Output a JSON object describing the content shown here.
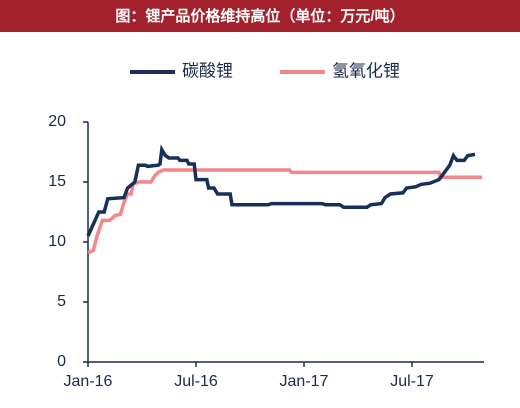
{
  "chart_data": {
    "type": "line",
    "title": "图：锂产品价格维持高位（单位：万元/吨）",
    "xlim": [
      0,
      22
    ],
    "xticks": [
      {
        "value": 0,
        "label": "Jan-16"
      },
      {
        "value": 6,
        "label": "Jul-16"
      },
      {
        "value": 12,
        "label": "Jan-17"
      },
      {
        "value": 18,
        "label": "Jul-17"
      }
    ],
    "ylim": [
      0,
      20
    ],
    "yticks": [
      0,
      5,
      10,
      15,
      20
    ],
    "grid": false,
    "legend": "top",
    "series": [
      {
        "name": "碳酸锂",
        "color": "#17305a",
        "x": [
          0,
          0.3,
          0.6,
          0.9,
          1.1,
          2.0,
          2.2,
          2.6,
          2.8,
          3.2,
          3.3,
          3.9,
          4.0,
          4.1,
          4.3,
          4.5,
          5.0,
          5.1,
          5.5,
          5.6,
          5.9,
          6.0,
          6.6,
          6.7,
          7.0,
          7.2,
          7.9,
          8.0,
          10.0,
          10.2,
          13.0,
          13.2,
          14.0,
          14.2,
          15.5,
          15.7,
          16.3,
          16.5,
          16.8,
          17.5,
          17.7,
          18.2,
          18.5,
          19.0,
          19.5,
          19.8,
          20.1,
          20.3,
          20.5,
          20.9,
          21.1,
          21.5
        ],
        "values": [
          10.5,
          11.5,
          12.5,
          12.5,
          13.6,
          13.7,
          14.5,
          15,
          16.4,
          16.4,
          16.3,
          16.4,
          16.5,
          17.7,
          17.2,
          17.0,
          17.0,
          16.8,
          16.8,
          16.5,
          16.5,
          15.2,
          15.2,
          14.5,
          14.5,
          14.0,
          14.0,
          13.1,
          13.1,
          13.2,
          13.2,
          13.1,
          13.1,
          12.9,
          12.9,
          13.1,
          13.2,
          13.7,
          14.0,
          14.1,
          14.5,
          14.6,
          14.8,
          14.9,
          15.2,
          15.8,
          16.4,
          17.2,
          16.8,
          16.8,
          17.2,
          17.3
        ]
      },
      {
        "name": "氢氧化锂",
        "color": "#f4878a",
        "x": [
          0,
          0.3,
          0.5,
          0.8,
          1.2,
          1.5,
          1.8,
          1.9,
          2.0,
          2.2,
          2.4,
          2.5,
          2.8,
          3.5,
          3.7,
          3.9,
          4.2,
          11.2,
          11.3,
          19.5,
          19.6,
          21.9
        ],
        "values": [
          9.1,
          9.3,
          10.5,
          11.8,
          11.8,
          12.2,
          12.3,
          12.8,
          13.3,
          14.0,
          14.0,
          14.8,
          15.0,
          15.0,
          15.5,
          15.8,
          16.0,
          16.0,
          15.8,
          15.8,
          15.4,
          15.4
        ]
      }
    ]
  }
}
